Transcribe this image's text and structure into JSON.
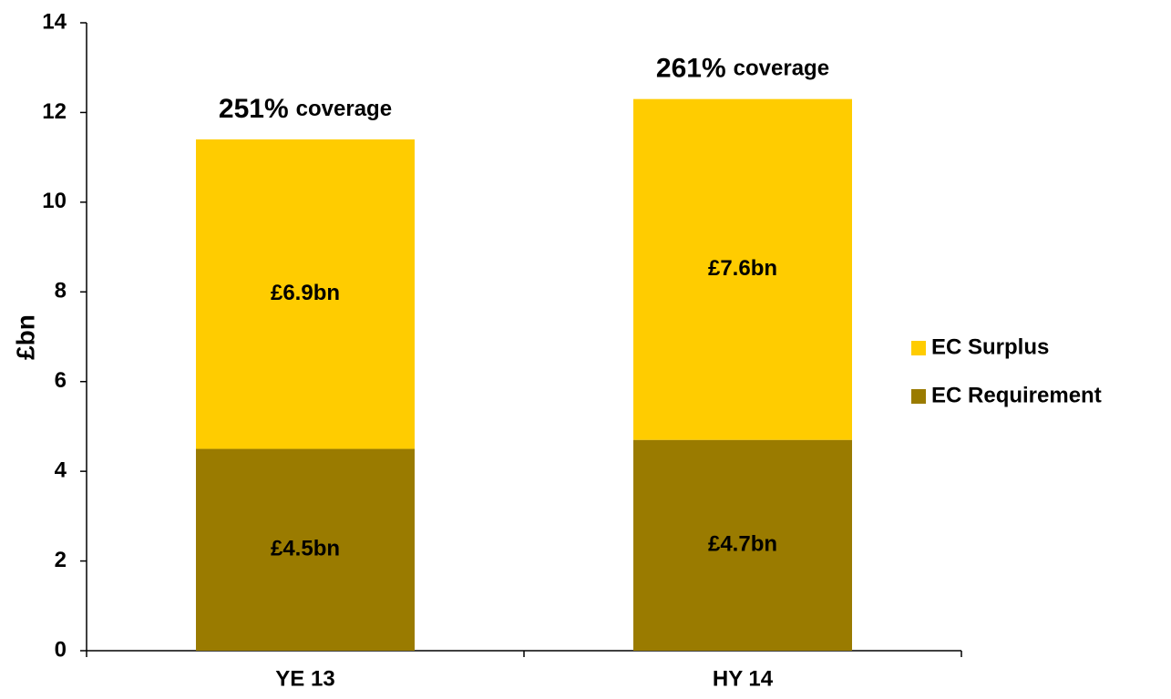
{
  "chart_data": {
    "type": "stacked_bar",
    "y_label": "£bn",
    "categories": [
      "YE 13",
      "HY 14"
    ],
    "series": [
      {
        "name": "EC Requirement",
        "color": "#9a7b00",
        "values": [
          4.5,
          4.7
        ],
        "value_labels": [
          "£4.5bn",
          "£4.7bn"
        ]
      },
      {
        "name": "EC Surplus",
        "color": "#ffcc00",
        "values": [
          6.9,
          7.6
        ],
        "value_labels": [
          "£6.9bn",
          "£7.6bn"
        ]
      }
    ],
    "annotations": [
      {
        "value": "251%",
        "text": "coverage"
      },
      {
        "value": "261%",
        "text": "coverage"
      }
    ],
    "ylim": [
      0,
      14
    ],
    "yticks": [
      0,
      2,
      4,
      6,
      8,
      10,
      12,
      14
    ],
    "legend": "right"
  }
}
